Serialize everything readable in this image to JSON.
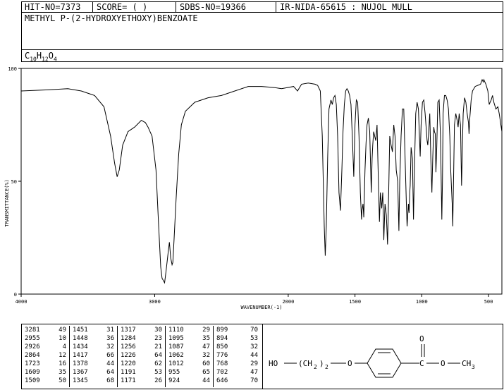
{
  "header": {
    "hit_no": "HIT-NO=7373",
    "score": "SCORE=  (   )",
    "sdbs_no": "SDBS-NO=19366",
    "ir_nida": "IR-NIDA-65615 : NUJOL MULL"
  },
  "compound_name": "METHYL P-(2-HYDROXYETHOXY)BENZOATE",
  "formula": {
    "c": "C",
    "c_n": "10",
    "h": "H",
    "h_n": "12",
    "o": "O",
    "o_n": "4"
  },
  "structure": {
    "left_group": "HO",
    "chain": "(CH",
    "chain_sub": "2",
    "chain_close": ")",
    "chain_n": "2",
    "ether_o": "O",
    "carbonyl_o": "O",
    "ester_o": "O",
    "methyl": "CH",
    "methyl_sub": "3"
  },
  "peak_table": [
    [
      [
        "3281",
        "49"
      ],
      [
        "2955",
        "10"
      ],
      [
        "2926",
        "4"
      ],
      [
        "2864",
        "12"
      ],
      [
        "1723",
        "16"
      ],
      [
        "1609",
        "35"
      ],
      [
        "1509",
        "50"
      ]
    ],
    [
      [
        "1451",
        "31"
      ],
      [
        "1448",
        "36"
      ],
      [
        "1434",
        "32"
      ],
      [
        "1417",
        "66"
      ],
      [
        "1378",
        "44"
      ],
      [
        "1367",
        "64"
      ],
      [
        "1345",
        "68"
      ]
    ],
    [
      [
        "1317",
        "30"
      ],
      [
        "1284",
        "23"
      ],
      [
        "1256",
        "21"
      ],
      [
        "1226",
        "64"
      ],
      [
        "1220",
        "62"
      ],
      [
        "1191",
        "53"
      ],
      [
        "1171",
        "26"
      ]
    ],
    [
      [
        "1110",
        "29"
      ],
      [
        "1095",
        "35"
      ],
      [
        "1087",
        "47"
      ],
      [
        "1062",
        "32"
      ],
      [
        "1012",
        "60"
      ],
      [
        "955",
        "65"
      ],
      [
        "924",
        "44"
      ]
    ],
    [
      [
        "899",
        "70"
      ],
      [
        "894",
        "53"
      ],
      [
        "850",
        "32"
      ],
      [
        "776",
        "44"
      ],
      [
        "768",
        "29"
      ],
      [
        "702",
        "47"
      ],
      [
        "646",
        "70"
      ]
    ]
  ],
  "chart_data": {
    "type": "line",
    "title": "",
    "xlabel": "WAVENUMBER(-1)",
    "ylabel": "TRANSMITTANCE(%)",
    "xlim": [
      4000,
      400
    ],
    "ylim": [
      0,
      100
    ],
    "x_ticks": [
      4000,
      3000,
      2000,
      1500,
      1000,
      500
    ],
    "y_ticks": [
      0,
      50,
      100
    ],
    "x_tick_labels": [
      "4000",
      "3000",
      "2000",
      "1500",
      "1000",
      "500"
    ],
    "y_tick_labels": [
      "0",
      "50",
      "100"
    ],
    "series": [
      {
        "color": "#000000",
        "points": [
          [
            4000,
            90
          ],
          [
            3800,
            90.5
          ],
          [
            3650,
            91
          ],
          [
            3550,
            90
          ],
          [
            3450,
            88
          ],
          [
            3380,
            83
          ],
          [
            3330,
            70
          ],
          [
            3300,
            58
          ],
          [
            3281,
            52
          ],
          [
            3265,
            55
          ],
          [
            3240,
            66
          ],
          [
            3200,
            72
          ],
          [
            3150,
            74
          ],
          [
            3100,
            77
          ],
          [
            3070,
            76
          ],
          [
            3050,
            74
          ],
          [
            3020,
            70
          ],
          [
            2990,
            55
          ],
          [
            2970,
            30
          ],
          [
            2955,
            12
          ],
          [
            2945,
            7
          ],
          [
            2935,
            6
          ],
          [
            2926,
            5
          ],
          [
            2915,
            10
          ],
          [
            2900,
            18
          ],
          [
            2890,
            23
          ],
          [
            2880,
            16
          ],
          [
            2870,
            13
          ],
          [
            2864,
            14
          ],
          [
            2855,
            24
          ],
          [
            2840,
            42
          ],
          [
            2820,
            62
          ],
          [
            2800,
            75
          ],
          [
            2770,
            81
          ],
          [
            2700,
            85
          ],
          [
            2600,
            87
          ],
          [
            2500,
            88
          ],
          [
            2400,
            90
          ],
          [
            2300,
            92
          ],
          [
            2200,
            92
          ],
          [
            2100,
            91.5
          ],
          [
            2050,
            91
          ],
          [
            1960,
            92
          ],
          [
            1930,
            90
          ],
          [
            1920,
            91
          ],
          [
            1900,
            93
          ],
          [
            1850,
            93.5
          ],
          [
            1800,
            93
          ],
          [
            1780,
            92.5
          ],
          [
            1760,
            90
          ],
          [
            1745,
            70
          ],
          [
            1730,
            30
          ],
          [
            1723,
            17
          ],
          [
            1715,
            30
          ],
          [
            1705,
            60
          ],
          [
            1695,
            82
          ],
          [
            1680,
            86
          ],
          [
            1670,
            84
          ],
          [
            1660,
            87
          ],
          [
            1650,
            88
          ],
          [
            1640,
            84
          ],
          [
            1630,
            70
          ],
          [
            1620,
            45
          ],
          [
            1609,
            37
          ],
          [
            1598,
            55
          ],
          [
            1590,
            72
          ],
          [
            1580,
            84
          ],
          [
            1570,
            90
          ],
          [
            1560,
            91
          ],
          [
            1550,
            90
          ],
          [
            1540,
            88
          ],
          [
            1530,
            84
          ],
          [
            1520,
            70
          ],
          [
            1509,
            52
          ],
          [
            1500,
            75
          ],
          [
            1490,
            86
          ],
          [
            1480,
            85
          ],
          [
            1470,
            70
          ],
          [
            1460,
            45
          ],
          [
            1451,
            33
          ],
          [
            1448,
            37
          ],
          [
            1440,
            40
          ],
          [
            1434,
            34
          ],
          [
            1425,
            55
          ],
          [
            1417,
            67
          ],
          [
            1410,
            75
          ],
          [
            1400,
            78
          ],
          [
            1390,
            72
          ],
          [
            1378,
            45
          ],
          [
            1372,
            60
          ],
          [
            1367,
            66
          ],
          [
            1360,
            72
          ],
          [
            1345,
            68
          ],
          [
            1335,
            75
          ],
          [
            1325,
            50
          ],
          [
            1317,
            32
          ],
          [
            1310,
            45
          ],
          [
            1300,
            38
          ],
          [
            1292,
            45
          ],
          [
            1284,
            24
          ],
          [
            1275,
            40
          ],
          [
            1265,
            35
          ],
          [
            1256,
            22
          ],
          [
            1248,
            45
          ],
          [
            1240,
            70
          ],
          [
            1230,
            66
          ],
          [
            1226,
            65
          ],
          [
            1220,
            63
          ],
          [
            1210,
            75
          ],
          [
            1200,
            70
          ],
          [
            1191,
            55
          ],
          [
            1180,
            50
          ],
          [
            1171,
            28
          ],
          [
            1165,
            50
          ],
          [
            1155,
            70
          ],
          [
            1145,
            82
          ],
          [
            1135,
            82
          ],
          [
            1125,
            60
          ],
          [
            1115,
            40
          ],
          [
            1110,
            30
          ],
          [
            1100,
            40
          ],
          [
            1095,
            36
          ],
          [
            1090,
            45
          ],
          [
            1087,
            48
          ],
          [
            1080,
            65
          ],
          [
            1070,
            60
          ],
          [
            1062,
            33
          ],
          [
            1055,
            55
          ],
          [
            1045,
            80
          ],
          [
            1035,
            85
          ],
          [
            1025,
            82
          ],
          [
            1012,
            61
          ],
          [
            1005,
            75
          ],
          [
            995,
            85
          ],
          [
            985,
            86
          ],
          [
            975,
            80
          ],
          [
            960,
            68
          ],
          [
            955,
            66
          ],
          [
            950,
            70
          ],
          [
            940,
            80
          ],
          [
            932,
            60
          ],
          [
            924,
            45
          ],
          [
            918,
            60
          ],
          [
            910,
            74
          ],
          [
            905,
            72
          ],
          [
            899,
            71
          ],
          [
            894,
            54
          ],
          [
            888,
            65
          ],
          [
            880,
            85
          ],
          [
            870,
            86
          ],
          [
            860,
            70
          ],
          [
            850,
            33
          ],
          [
            845,
            50
          ],
          [
            840,
            80
          ],
          [
            830,
            88
          ],
          [
            820,
            88
          ],
          [
            810,
            86
          ],
          [
            800,
            82
          ],
          [
            790,
            70
          ],
          [
            783,
            55
          ],
          [
            776,
            45
          ],
          [
            772,
            40
          ],
          [
            768,
            30
          ],
          [
            762,
            50
          ],
          [
            755,
            75
          ],
          [
            745,
            80
          ],
          [
            735,
            77
          ],
          [
            728,
            74
          ],
          [
            720,
            80
          ],
          [
            710,
            75
          ],
          [
            702,
            48
          ],
          [
            696,
            65
          ],
          [
            690,
            80
          ],
          [
            680,
            87
          ],
          [
            670,
            85
          ],
          [
            660,
            80
          ],
          [
            650,
            76
          ],
          [
            646,
            71
          ],
          [
            640,
            78
          ],
          [
            630,
            86
          ],
          [
            620,
            90
          ],
          [
            600,
            92
          ],
          [
            580,
            92.5
          ],
          [
            560,
            93
          ],
          [
            548,
            95
          ],
          [
            540,
            94
          ],
          [
            535,
            95
          ],
          [
            520,
            93
          ],
          [
            505,
            90
          ],
          [
            495,
            84
          ],
          [
            488,
            85
          ],
          [
            480,
            86
          ],
          [
            470,
            88
          ],
          [
            460,
            85
          ],
          [
            445,
            82
          ],
          [
            430,
            83
          ],
          [
            420,
            80
          ],
          [
            410,
            76
          ],
          [
            400,
            72
          ]
        ]
      }
    ]
  }
}
